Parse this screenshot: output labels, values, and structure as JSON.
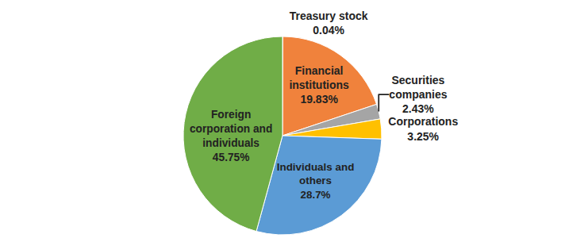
{
  "chart_data": {
    "type": "pie",
    "categories": [
      "Treasury stock",
      "Financial institutions",
      "Securities companies",
      "Corporations",
      "Individuals and others",
      "Foreign corporation and individuals"
    ],
    "values": [
      0.04,
      19.83,
      2.43,
      3.25,
      28.7,
      45.75
    ],
    "value_labels": [
      "0.04%",
      "19.83%",
      "2.43%",
      "3.25%",
      "28.7%",
      "45.75%"
    ],
    "colors": [
      "#4472c4",
      "#f0823c",
      "#a5a5a5",
      "#ffc000",
      "#5b9bd5",
      "#70ad47"
    ],
    "data_labels": true
  }
}
